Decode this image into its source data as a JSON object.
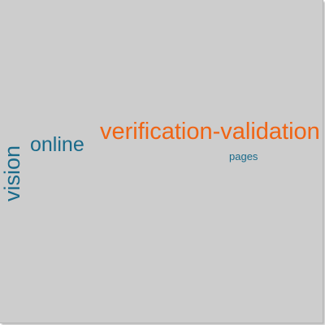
{
  "words": {
    "verification": {
      "text": "verification-validation",
      "color": "#f06414"
    },
    "online": {
      "text": "online",
      "color": "#1a6a8a"
    },
    "pages": {
      "text": "pages",
      "color": "#1a6a8a"
    },
    "vision": {
      "text": "vision",
      "color": "#1a6a8a"
    }
  }
}
